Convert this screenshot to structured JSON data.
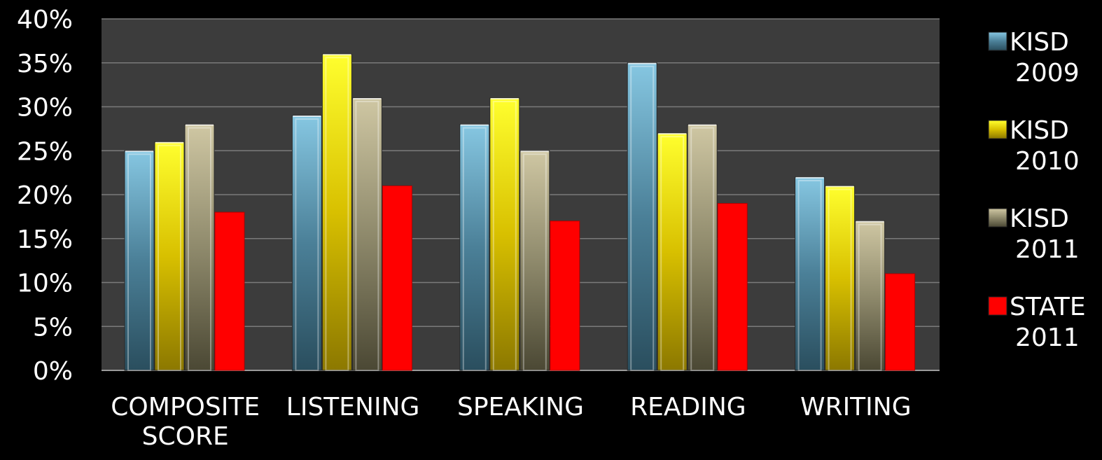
{
  "chart_data": {
    "type": "bar",
    "categories": [
      [
        "COMPOSITE",
        "SCORE"
      ],
      [
        "LISTENING"
      ],
      [
        "SPEAKING"
      ],
      [
        "READING"
      ],
      [
        "WRITING"
      ]
    ],
    "series": [
      {
        "name": [
          "KISD",
          "2009"
        ],
        "values": [
          25,
          29,
          28,
          35,
          22
        ],
        "color": "#4e8aa3",
        "fill": "grad-kisd2009",
        "style": "3d"
      },
      {
        "name": [
          "KISD",
          "2010"
        ],
        "values": [
          26,
          36,
          31,
          27,
          21
        ],
        "color": "#e6d400",
        "fill": "grad-kisd2010",
        "style": "3d"
      },
      {
        "name": [
          "KISD",
          "2011"
        ],
        "values": [
          28,
          31,
          25,
          28,
          17
        ],
        "color": "#8f8a6c",
        "fill": "grad-kisd2011",
        "style": "3d"
      },
      {
        "name": [
          "STATE",
          "2011"
        ],
        "values": [
          18,
          21,
          17,
          19,
          11
        ],
        "color": "#ff0000",
        "fill": "#ff0000",
        "style": "flat"
      }
    ],
    "y_ticks": [
      "0%",
      "5%",
      "10%",
      "15%",
      "20%",
      "25%",
      "30%",
      "35%",
      "40%"
    ],
    "ylim": [
      0,
      40
    ],
    "y_step": 5,
    "grid": true,
    "legend_position": "right",
    "plot_background": "#3c3c3c",
    "page_background": "#000000",
    "text_color": "#ffffff"
  }
}
